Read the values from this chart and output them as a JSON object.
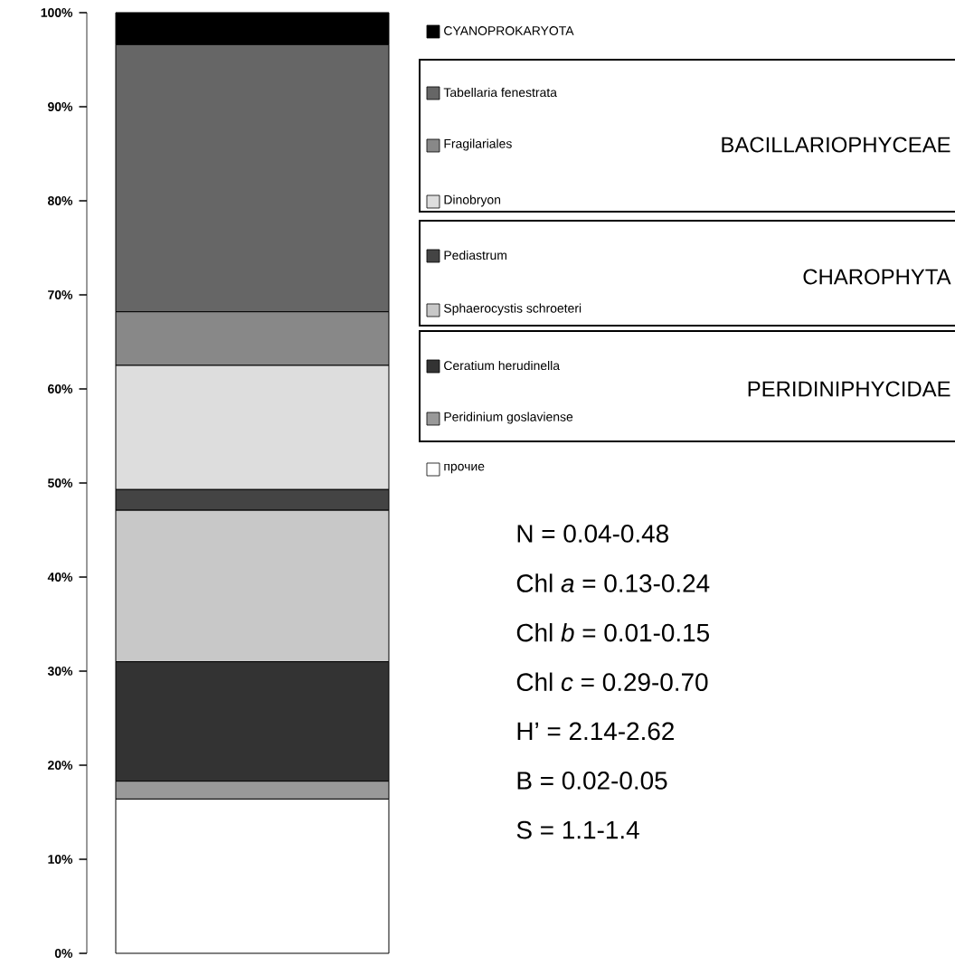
{
  "chart_data": {
    "type": "bar",
    "stacked": true,
    "categories": [
      null
    ],
    "series": [
      {
        "name": "прочие",
        "color": "#ffffff",
        "values": [
          16.4
        ]
      },
      {
        "name": "Peridinium goslaviense",
        "color": "#999999",
        "values": [
          1.9
        ]
      },
      {
        "name": "Ceratium herudinella",
        "color": "#333333",
        "values": [
          12.7
        ]
      },
      {
        "name": "Sphaerocystis schroeteri",
        "color": "#c8c8c8",
        "values": [
          16.1
        ]
      },
      {
        "name": "Pediastrum",
        "color": "#444444",
        "values": [
          2.2
        ]
      },
      {
        "name": "Dinobryon",
        "color": "#dddddd",
        "values": [
          13.2
        ]
      },
      {
        "name": "Fragilariales",
        "color": "#888888",
        "values": [
          5.7
        ]
      },
      {
        "name": "Tabellaria fenestrata",
        "color": "#666666",
        "values": [
          28.4
        ]
      },
      {
        "name": "CYANOPROKARYOTA",
        "color": "#000000",
        "values": [
          3.4
        ]
      }
    ],
    "ylim": [
      0,
      100
    ],
    "yticks": [
      {
        "value": 0,
        "label": "0%"
      },
      {
        "value": 10,
        "label": "10%"
      },
      {
        "value": 20,
        "label": "20%"
      },
      {
        "value": 30,
        "label": "30%"
      },
      {
        "value": 40,
        "label": "40%"
      },
      {
        "value": 50,
        "label": "50%"
      },
      {
        "value": 60,
        "label": "60%"
      },
      {
        "value": 70,
        "label": "70%"
      },
      {
        "value": 80,
        "label": "80%"
      },
      {
        "value": 90,
        "label": "90%"
      },
      {
        "value": 100,
        "label": "100%"
      }
    ],
    "tick_labels": "y",
    "legend": "right",
    "annotations": [
      "BACILLARIOPHYCEAE",
      "CHAROPHYTA",
      "PERIDINIPHYCIDAE",
      "N = 0.04-0.48",
      "Chl *a* = 0.13-0.24",
      "Chl *b* = 0.01-0.15",
      "Chl *c* = 0.29-0.70",
      "H’ = 2.14-2.62",
      "B = 0.02-0.05",
      "S = 1.1-1.4"
    ]
  }
}
